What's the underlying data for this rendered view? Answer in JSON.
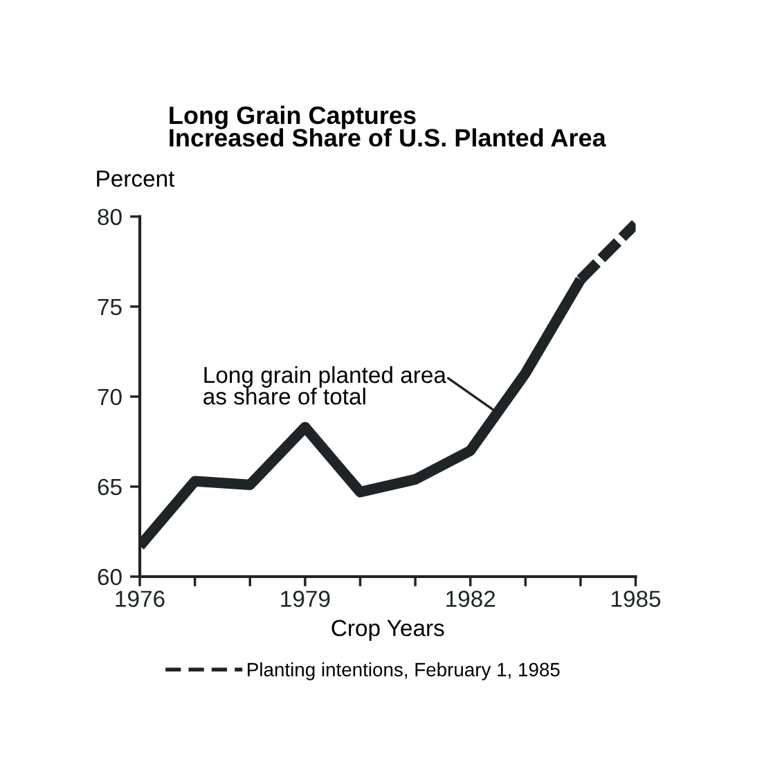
{
  "chart_data": {
    "type": "line",
    "title": "Long Grain Captures\nIncreased Share of U.S. Planted Area",
    "ylabel": "Percent",
    "xlabel": "Crop Years",
    "xlim": [
      1976,
      1985
    ],
    "xticks": [
      1976,
      {
        "value": 1977,
        "label": null
      },
      {
        "value": 1978,
        "label": null
      },
      1979,
      {
        "value": 1980,
        "label": null
      },
      {
        "value": 1981,
        "label": null
      },
      1982,
      {
        "value": 1983,
        "label": null
      },
      {
        "value": 1984,
        "label": null
      },
      1985
    ],
    "ylim": [
      60,
      80
    ],
    "yticks": [
      60,
      65,
      70,
      75,
      80
    ],
    "grid": false,
    "legend": "bottom",
    "marker": "none",
    "series": [
      {
        "color": "#1f2526",
        "line_style": "solid",
        "x": [
          1976,
          1977,
          1978,
          1979,
          1980,
          1981,
          1982,
          1983,
          1984
        ],
        "values": [
          61.7,
          65.3,
          65.1,
          68.3,
          64.7,
          65.4,
          67.0,
          71.3,
          76.5
        ]
      },
      {
        "name": "Planting intentions, February 1, 1985",
        "color": "#1f2526",
        "line_style": "dashed",
        "x": [
          1984,
          1985
        ],
        "values": [
          76.5,
          79.6
        ]
      }
    ],
    "annotations": [
      {
        "text": "Long grain planted area\nas share of total",
        "x": 1982.4,
        "y": 69.3
      }
    ]
  }
}
